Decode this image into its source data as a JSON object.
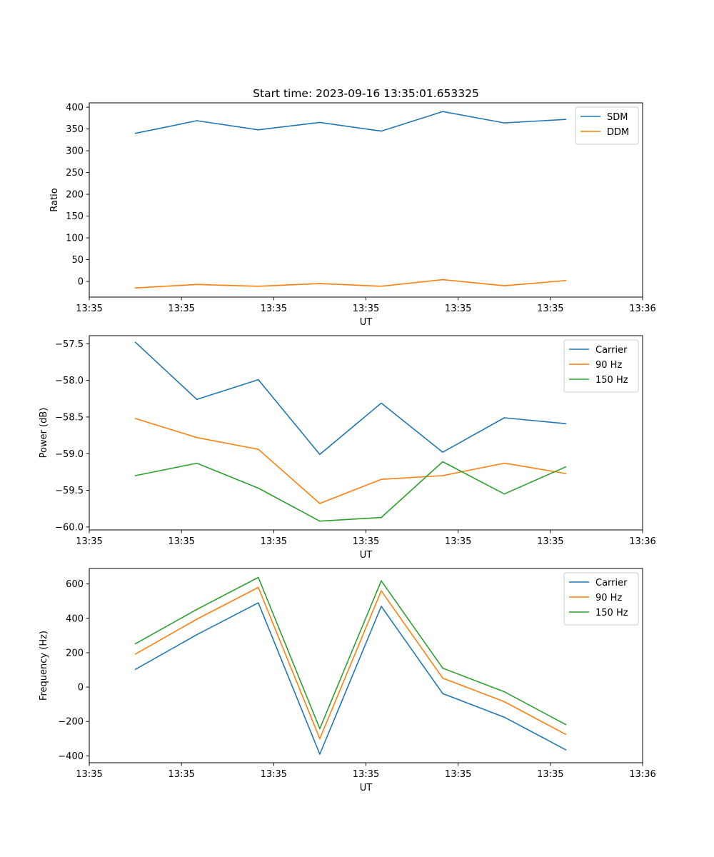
{
  "figure_title": "Start time: 2023-09-16 13:35:01.653325",
  "chart_data": [
    {
      "type": "line",
      "title": "Start time: 2023-09-16 13:35:01.653325",
      "xlabel": "UT",
      "ylabel": "Ratio",
      "x": [
        1,
        2,
        3,
        4,
        5,
        6,
        7,
        8
      ],
      "xlim": [
        0.25,
        9.25
      ],
      "xticks": [
        0.25,
        1.75,
        3.25,
        4.75,
        6.25,
        7.75,
        9.25
      ],
      "xtick_labels": [
        "13:35",
        "13:35",
        "13:35",
        "13:35",
        "13:35",
        "13:35",
        "13:36"
      ],
      "ylim": [
        -36,
        410
      ],
      "yticks": [
        0,
        50,
        100,
        150,
        200,
        250,
        300,
        350,
        400
      ],
      "ytick_labels": [
        "0",
        "50",
        "100",
        "150",
        "200",
        "250",
        "300",
        "350",
        "400"
      ],
      "legend": "top-right",
      "series": [
        {
          "name": "SDM",
          "color": "#1f77b4",
          "values": [
            340,
            369,
            348,
            365,
            345,
            390,
            364,
            372
          ]
        },
        {
          "name": "DDM",
          "color": "#ff7f0e",
          "values": [
            -15,
            -7,
            -11,
            -5,
            -11,
            4,
            -10,
            2
          ]
        }
      ]
    },
    {
      "type": "line",
      "title": "",
      "xlabel": "UT",
      "ylabel": "Power (dB)",
      "x": [
        1,
        2,
        3,
        4,
        5,
        6,
        7,
        8
      ],
      "xlim": [
        0.25,
        9.25
      ],
      "xticks": [
        0.25,
        1.75,
        3.25,
        4.75,
        6.25,
        7.75,
        9.25
      ],
      "xtick_labels": [
        "13:35",
        "13:35",
        "13:35",
        "13:35",
        "13:35",
        "13:35",
        "13:36"
      ],
      "ylim": [
        -60.04,
        -57.39
      ],
      "yticks": [
        -60.0,
        -59.5,
        -59.0,
        -58.5,
        -58.0,
        -57.5
      ],
      "ytick_labels": [
        "−60.0",
        "−59.5",
        "−59.0",
        "−58.5",
        "−58.0",
        "−57.5"
      ],
      "legend": "top-right",
      "series": [
        {
          "name": "Carrier",
          "color": "#1f77b4",
          "values": [
            -57.48,
            -58.26,
            -57.99,
            -59.01,
            -58.31,
            -58.98,
            -58.51,
            -58.59
          ]
        },
        {
          "name": "90 Hz",
          "color": "#ff7f0e",
          "values": [
            -58.52,
            -58.78,
            -58.94,
            -59.68,
            -59.35,
            -59.3,
            -59.13,
            -59.27
          ]
        },
        {
          "name": "150 Hz",
          "color": "#2ca02c",
          "values": [
            -59.3,
            -59.13,
            -59.47,
            -59.92,
            -59.87,
            -59.11,
            -59.55,
            -59.18
          ]
        }
      ]
    },
    {
      "type": "line",
      "title": "",
      "xlabel": "UT",
      "ylabel": "Frequency (Hz)",
      "x": [
        1,
        2,
        3,
        4,
        5,
        6,
        7,
        8
      ],
      "xlim": [
        0.25,
        9.25
      ],
      "xticks": [
        0.25,
        1.75,
        3.25,
        4.75,
        6.25,
        7.75,
        9.25
      ],
      "xtick_labels": [
        "13:35",
        "13:35",
        "13:35",
        "13:35",
        "13:35",
        "13:35",
        "13:36"
      ],
      "ylim": [
        -440,
        690
      ],
      "yticks": [
        -400,
        -200,
        0,
        200,
        400,
        600
      ],
      "ytick_labels": [
        "−400",
        "−200",
        "0",
        "200",
        "400",
        "600"
      ],
      "legend": "top-right",
      "series": [
        {
          "name": "Carrier",
          "color": "#1f77b4",
          "values": [
            103,
            305,
            490,
            -390,
            470,
            -38,
            -175,
            -365
          ]
        },
        {
          "name": "90 Hz",
          "color": "#ff7f0e",
          "values": [
            192,
            395,
            580,
            -300,
            560,
            52,
            -85,
            -275
          ]
        },
        {
          "name": "150 Hz",
          "color": "#2ca02c",
          "values": [
            252,
            452,
            638,
            -242,
            618,
            110,
            -27,
            -218
          ]
        }
      ]
    }
  ]
}
